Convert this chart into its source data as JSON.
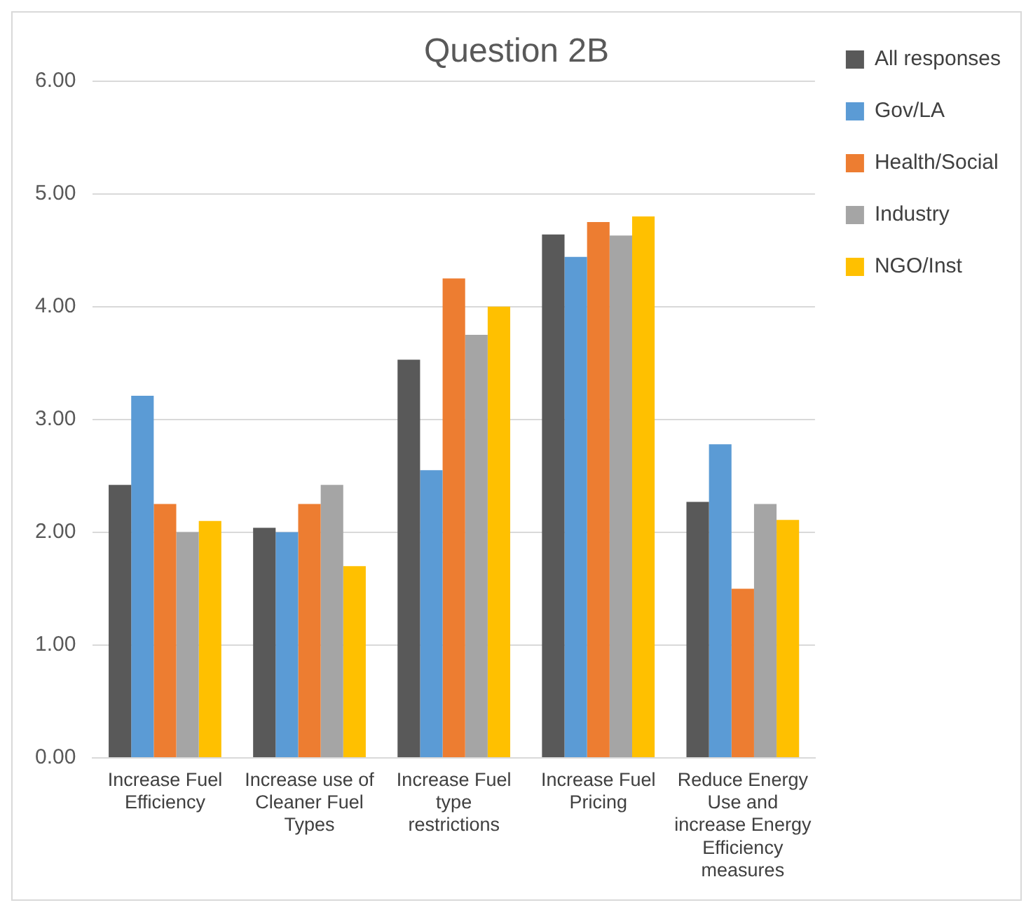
{
  "chart_data": {
    "type": "bar",
    "title": "Question 2B",
    "categories": [
      "Increase Fuel Efficiency",
      "Increase use of Cleaner Fuel Types",
      "Increase Fuel type restrictions",
      "Increase Fuel Pricing",
      "Reduce Energy Use and increase Energy Efficiency measures"
    ],
    "series": [
      {
        "name": "All responses",
        "color": "#595959",
        "values": [
          2.42,
          2.04,
          3.53,
          4.64,
          2.27
        ]
      },
      {
        "name": "Gov/LA",
        "color": "#5b9bd5",
        "values": [
          3.21,
          2.0,
          2.55,
          4.44,
          2.78
        ]
      },
      {
        "name": "Health/Social",
        "color": "#ed7d31",
        "values": [
          2.25,
          2.25,
          4.25,
          4.75,
          1.5
        ]
      },
      {
        "name": "Industry",
        "color": "#a5a5a5",
        "values": [
          2.0,
          2.42,
          3.75,
          4.63,
          2.25
        ]
      },
      {
        "name": "NGO/Inst",
        "color": "#ffc000",
        "values": [
          2.1,
          1.7,
          4.0,
          4.8,
          2.11
        ]
      }
    ],
    "ylim": [
      0,
      6
    ],
    "yticks": [
      {
        "value": 0,
        "label": "0.00"
      },
      {
        "value": 1,
        "label": "1.00"
      },
      {
        "value": 2,
        "label": "2.00"
      },
      {
        "value": 3,
        "label": "3.00"
      },
      {
        "value": 4,
        "label": "4.00"
      },
      {
        "value": 5,
        "label": "5.00"
      },
      {
        "value": 6,
        "label": "6.00"
      }
    ],
    "grid": "y",
    "legend": "top right"
  }
}
